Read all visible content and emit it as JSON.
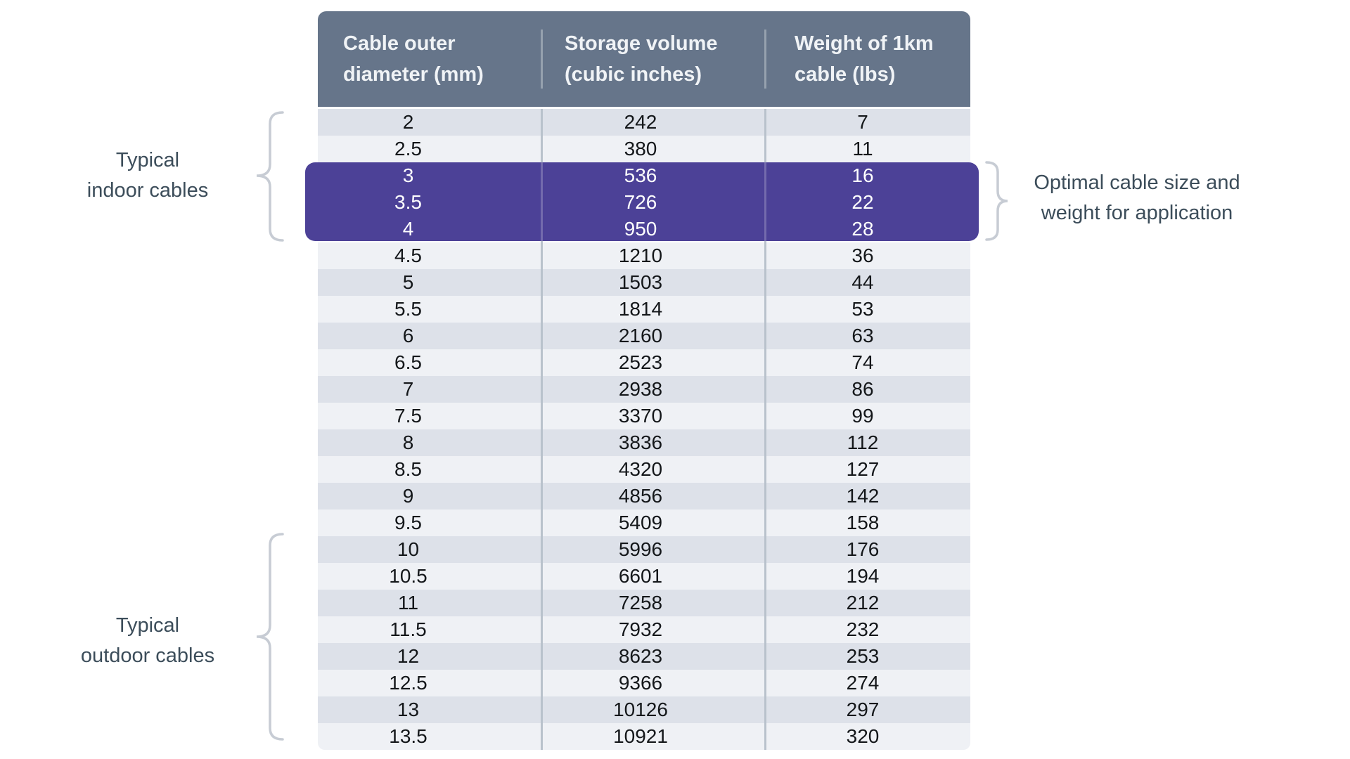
{
  "chart_data": {
    "type": "table",
    "columns": [
      {
        "line1": "Cable outer",
        "line2": "diameter (mm)"
      },
      {
        "line1": "Storage volume",
        "line2": "(cubic inches)"
      },
      {
        "line1": "Weight of 1km",
        "line2": "cable (lbs)"
      }
    ],
    "rows": [
      [
        "2",
        "242",
        "7"
      ],
      [
        "2.5",
        "380",
        "11"
      ],
      [
        "3",
        "536",
        "16"
      ],
      [
        "3.5",
        "726",
        "22"
      ],
      [
        "4",
        "950",
        "28"
      ],
      [
        "4.5",
        "1210",
        "36"
      ],
      [
        "5",
        "1503",
        "44"
      ],
      [
        "5.5",
        "1814",
        "53"
      ],
      [
        "6",
        "2160",
        "63"
      ],
      [
        "6.5",
        "2523",
        "74"
      ],
      [
        "7",
        "2938",
        "86"
      ],
      [
        "7.5",
        "3370",
        "99"
      ],
      [
        "8",
        "3836",
        "112"
      ],
      [
        "8.5",
        "4320",
        "127"
      ],
      [
        "9",
        "4856",
        "142"
      ],
      [
        "9.5",
        "5409",
        "158"
      ],
      [
        "10",
        "5996",
        "176"
      ],
      [
        "10.5",
        "6601",
        "194"
      ],
      [
        "11",
        "7258",
        "212"
      ],
      [
        "11.5",
        "7932",
        "232"
      ],
      [
        "12",
        "8623",
        "253"
      ],
      [
        "12.5",
        "9366",
        "274"
      ],
      [
        "13",
        "10126",
        "297"
      ],
      [
        "13.5",
        "10921",
        "320"
      ]
    ],
    "highlighted_rows": [
      2,
      3,
      4
    ]
  },
  "annotations": {
    "indoor": {
      "line1": "Typical",
      "line2": "indoor cables"
    },
    "outdoor": {
      "line1": "Typical",
      "line2": "outdoor cables"
    },
    "optimal": {
      "line1": "Optimal cable size and",
      "line2": "weight for application"
    }
  },
  "colors": {
    "header_bg": "#66758a",
    "header_text": "#f0f3f6",
    "stripe_dark": "#dde1e9",
    "stripe_light": "#eff1f5",
    "highlight": "#4c4197",
    "highlight_text": "#ffffff",
    "divider": "#b9c2cc",
    "header_divider": "#96a1ae",
    "body_text": "#14171a",
    "annotation_text": "#3c4d5a",
    "brace": "#c7ccd4"
  }
}
